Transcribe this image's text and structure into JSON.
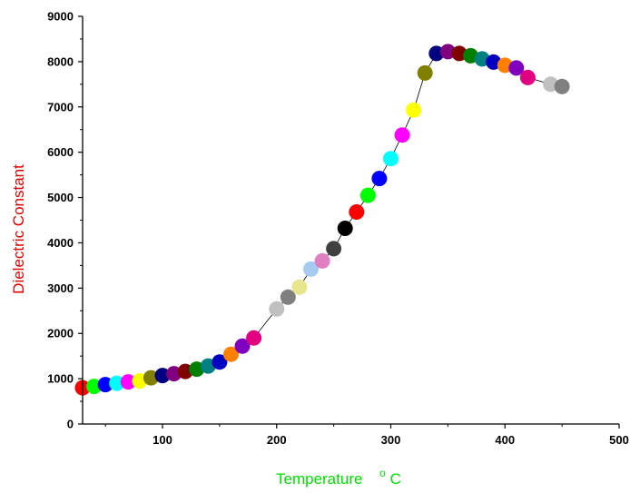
{
  "chart_data": {
    "type": "scatter",
    "xlabel_main": "Temperature",
    "xlabel_unit": "C",
    "xlabel_degree": "o",
    "ylabel": "Dielectric Constant",
    "xlabel_color": "#00e000",
    "ylabel_color": "#e00000",
    "xlim": [
      30,
      500
    ],
    "ylim": [
      0,
      9000
    ],
    "x_ticks": [
      100,
      200,
      300,
      400,
      500
    ],
    "y_ticks": [
      0,
      1000,
      2000,
      3000,
      4000,
      5000,
      6000,
      7000,
      8000,
      9000
    ],
    "grid": false,
    "legend": "none",
    "connector_line": true,
    "points": [
      {
        "x": 30,
        "y": 800,
        "color": "#ff0000"
      },
      {
        "x": 40,
        "y": 830,
        "color": "#00ff00"
      },
      {
        "x": 50,
        "y": 870,
        "color": "#0000ff"
      },
      {
        "x": 60,
        "y": 900,
        "color": "#00ffff"
      },
      {
        "x": 70,
        "y": 930,
        "color": "#ff00ff"
      },
      {
        "x": 80,
        "y": 950,
        "color": "#ffff00"
      },
      {
        "x": 90,
        "y": 1020,
        "color": "#808000"
      },
      {
        "x": 100,
        "y": 1070,
        "color": "#000080"
      },
      {
        "x": 110,
        "y": 1110,
        "color": "#800080"
      },
      {
        "x": 120,
        "y": 1160,
        "color": "#800000"
      },
      {
        "x": 130,
        "y": 1210,
        "color": "#008000"
      },
      {
        "x": 140,
        "y": 1280,
        "color": "#008080"
      },
      {
        "x": 150,
        "y": 1370,
        "color": "#0000c0"
      },
      {
        "x": 160,
        "y": 1540,
        "color": "#ff8000"
      },
      {
        "x": 170,
        "y": 1720,
        "color": "#8000c0"
      },
      {
        "x": 180,
        "y": 1900,
        "color": "#e00080"
      },
      {
        "x": 200,
        "y": 2540,
        "color": "#c0c0c0"
      },
      {
        "x": 210,
        "y": 2800,
        "color": "#808080"
      },
      {
        "x": 220,
        "y": 3020,
        "color": "#e6e68c"
      },
      {
        "x": 230,
        "y": 3420,
        "color": "#a6caf0"
      },
      {
        "x": 240,
        "y": 3600,
        "color": "#e080c0"
      },
      {
        "x": 250,
        "y": 3870,
        "color": "#404040"
      },
      {
        "x": 260,
        "y": 4320,
        "color": "#000000"
      },
      {
        "x": 270,
        "y": 4680,
        "color": "#ff0000"
      },
      {
        "x": 280,
        "y": 5050,
        "color": "#00ff00"
      },
      {
        "x": 290,
        "y": 5420,
        "color": "#0000ff"
      },
      {
        "x": 300,
        "y": 5860,
        "color": "#00ffff"
      },
      {
        "x": 310,
        "y": 6380,
        "color": "#ff00ff"
      },
      {
        "x": 320,
        "y": 6930,
        "color": "#ffff00"
      },
      {
        "x": 330,
        "y": 7750,
        "color": "#808000"
      },
      {
        "x": 340,
        "y": 8180,
        "color": "#000080"
      },
      {
        "x": 350,
        "y": 8220,
        "color": "#800080"
      },
      {
        "x": 360,
        "y": 8180,
        "color": "#800000"
      },
      {
        "x": 370,
        "y": 8130,
        "color": "#008000"
      },
      {
        "x": 380,
        "y": 8060,
        "color": "#008080"
      },
      {
        "x": 390,
        "y": 7990,
        "color": "#0000c0"
      },
      {
        "x": 400,
        "y": 7920,
        "color": "#ff8000"
      },
      {
        "x": 410,
        "y": 7860,
        "color": "#8000c0"
      },
      {
        "x": 420,
        "y": 7650,
        "color": "#e00080"
      },
      {
        "x": 440,
        "y": 7500,
        "color": "#c0c0c0"
      },
      {
        "x": 450,
        "y": 7450,
        "color": "#808080"
      }
    ]
  }
}
